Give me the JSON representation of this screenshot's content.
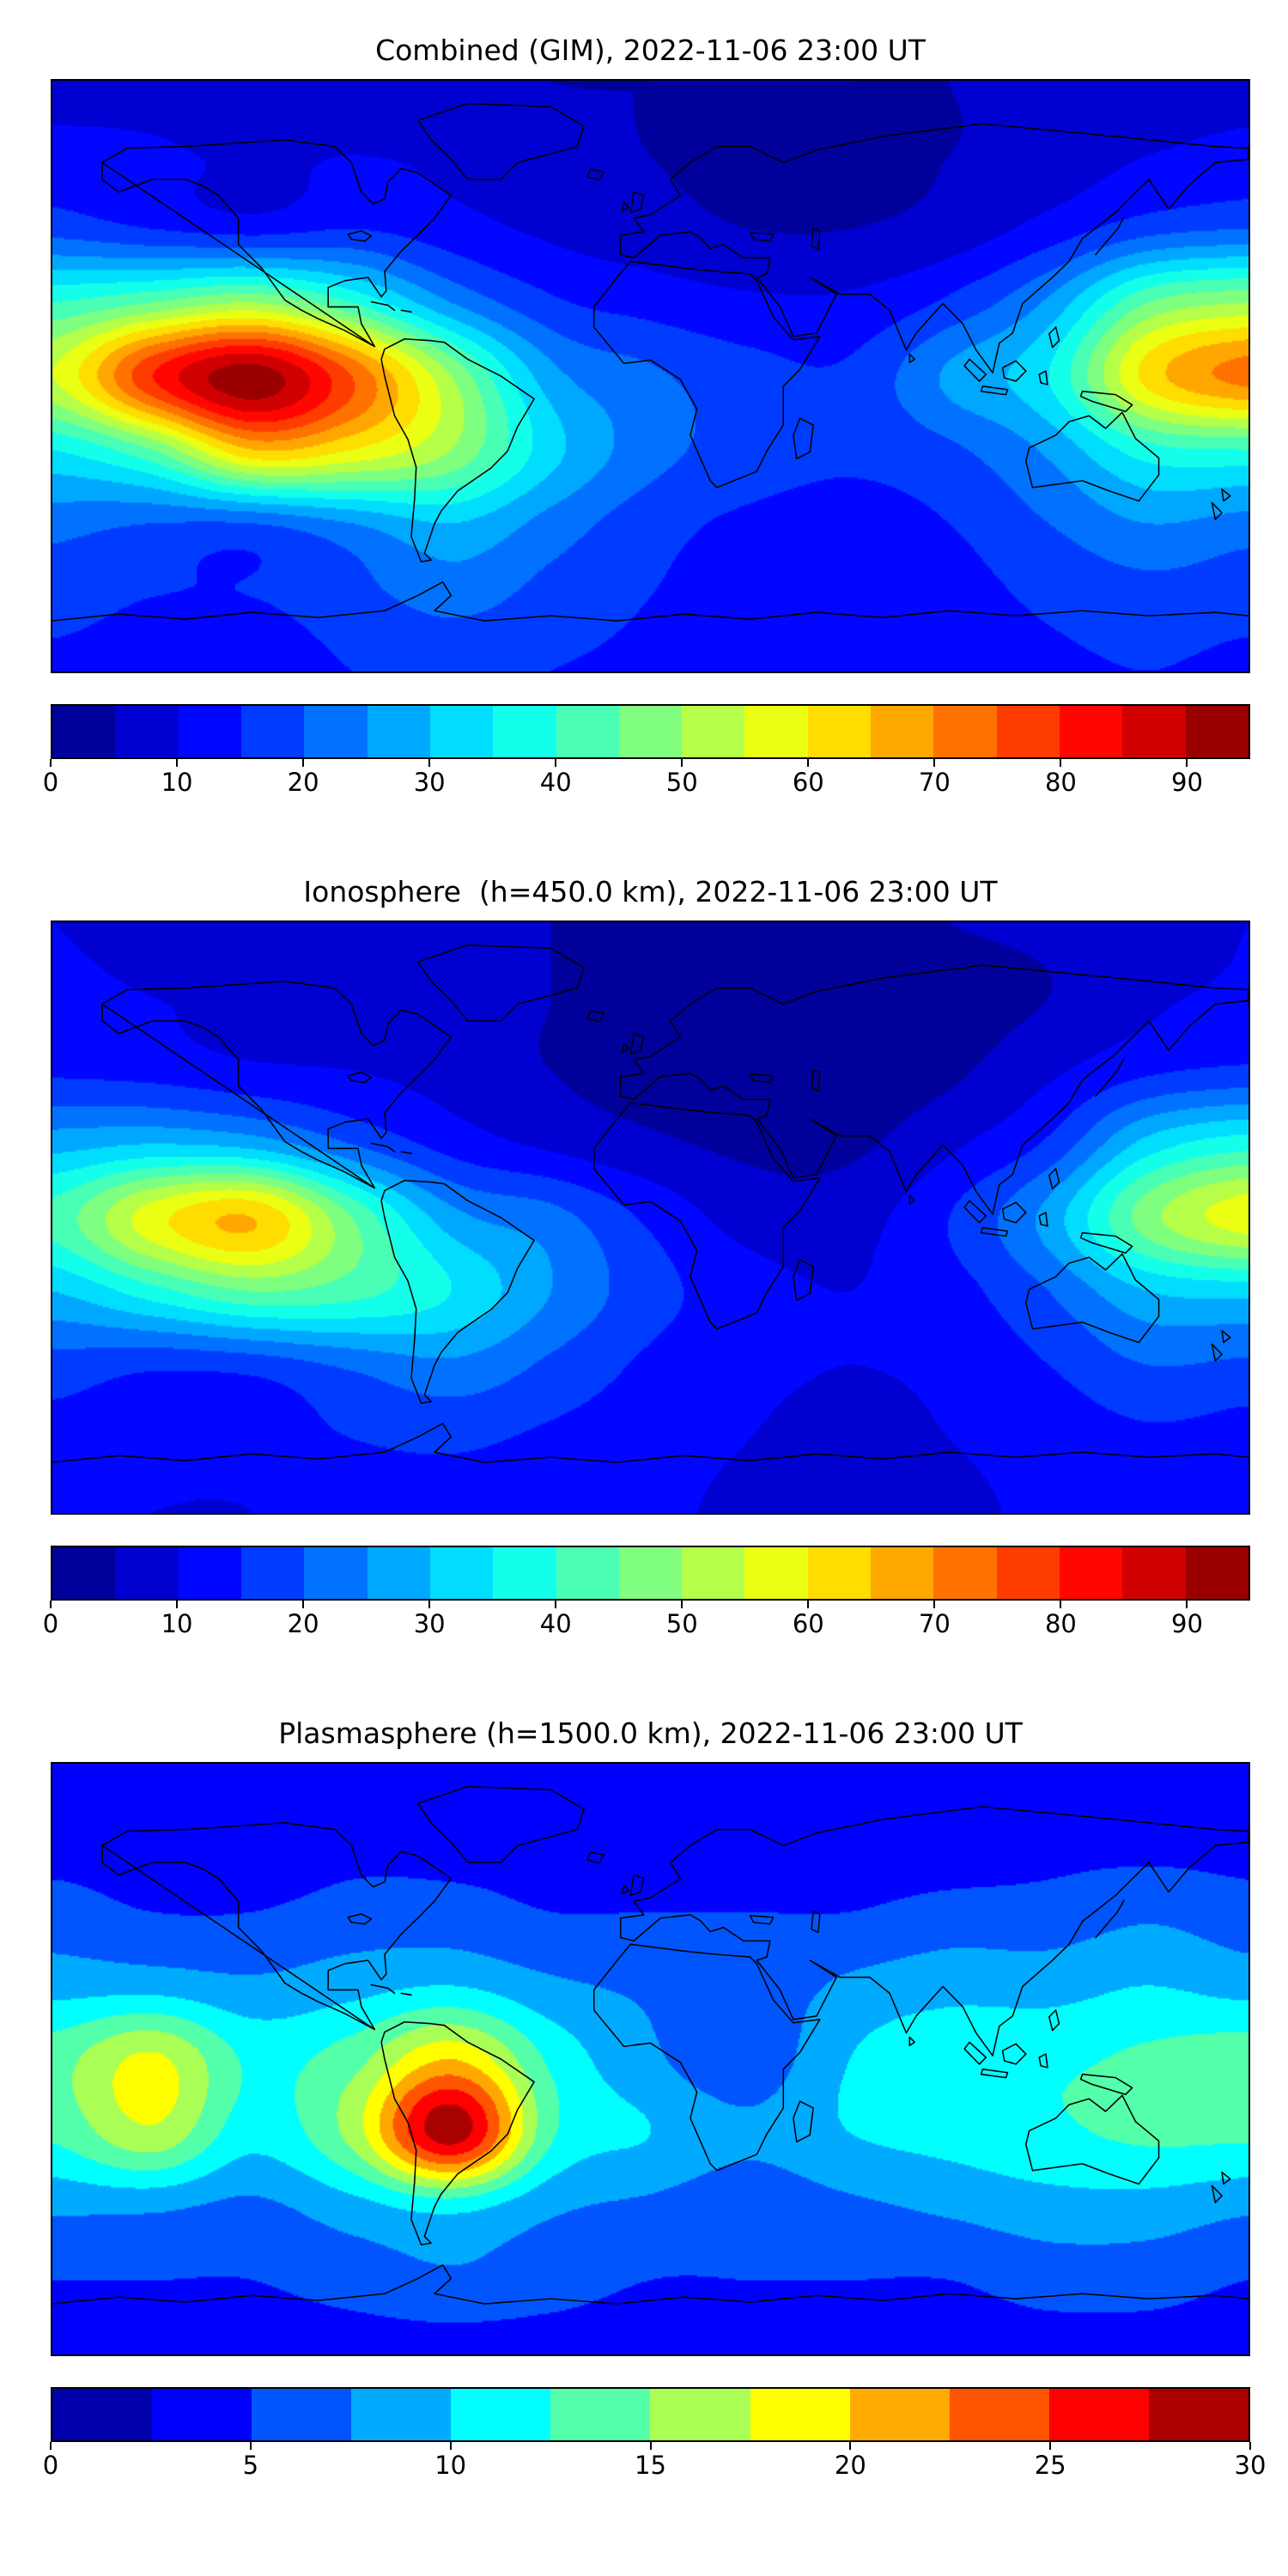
{
  "panels": [
    {
      "title": "Combined (GIM), 2022-11-06 23:00 UT",
      "colorbar": {
        "vmin": 0,
        "vmax": 95,
        "ticks": [
          0,
          10,
          20,
          30,
          40,
          50,
          60,
          70,
          80,
          90
        ],
        "segment_colors": [
          "#00009a",
          "#0000d0",
          "#0007ff",
          "#003cff",
          "#0072ff",
          "#00a8ff",
          "#00ddff",
          "#14ffeb",
          "#4affb5",
          "#80ff80",
          "#b5ff4a",
          "#ebff14",
          "#ffdd00",
          "#ffa800",
          "#ff7200",
          "#ff3c00",
          "#ff0700",
          "#d00000",
          "#9a0000"
        ]
      }
    },
    {
      "title": "Ionosphere  (h=450.0 km), 2022-11-06 23:00 UT",
      "colorbar": {
        "vmin": 0,
        "vmax": 95,
        "ticks": [
          0,
          10,
          20,
          30,
          40,
          50,
          60,
          70,
          80,
          90
        ],
        "segment_colors": [
          "#00009a",
          "#0000d0",
          "#0007ff",
          "#003cff",
          "#0072ff",
          "#00a8ff",
          "#00ddff",
          "#14ffeb",
          "#4affb5",
          "#80ff80",
          "#b5ff4a",
          "#ebff14",
          "#ffdd00",
          "#ffa800",
          "#ff7200",
          "#ff3c00",
          "#ff0700",
          "#d00000",
          "#9a0000"
        ]
      }
    },
    {
      "title": "Plasmasphere (h=1500.0 km), 2022-11-06 23:00 UT",
      "colorbar": {
        "vmin": 0,
        "vmax": 30,
        "ticks": [
          0,
          5,
          10,
          15,
          20,
          25,
          30
        ],
        "segment_colors": [
          "#0000aa",
          "#0000ff",
          "#0055ff",
          "#00aaff",
          "#00ffff",
          "#55ffaa",
          "#aaff55",
          "#ffff00",
          "#ffaa00",
          "#ff5500",
          "#ff0000",
          "#aa0000"
        ]
      }
    }
  ],
  "chart_data": [
    {
      "type": "heatmap",
      "title": "Combined (GIM), 2022-11-06 23:00 UT",
      "projection": "equirectangular world map, lon -180..180, lat 90..-90",
      "colormap": "jet",
      "vmin": 0,
      "vmax": 95,
      "contour_interval": 5,
      "colorbar_ticks": [
        0,
        10,
        20,
        30,
        40,
        50,
        60,
        70,
        80,
        90
      ],
      "lons": [
        -180,
        -150,
        -120,
        -90,
        -60,
        -30,
        0,
        30,
        60,
        90,
        120,
        150,
        180
      ],
      "lats": [
        90,
        67.5,
        45,
        22.5,
        0,
        -22.5,
        -45,
        -67.5,
        -90
      ],
      "values": [
        [
          8,
          8,
          7,
          7,
          6,
          5,
          5,
          5,
          5,
          5,
          6,
          7,
          8
        ],
        [
          12,
          11,
          9,
          10,
          9,
          7,
          5,
          4,
          4,
          5,
          7,
          10,
          12
        ],
        [
          18,
          15,
          13,
          15,
          12,
          9,
          7,
          5,
          5,
          7,
          12,
          18,
          20
        ],
        [
          40,
          45,
          50,
          40,
          25,
          16,
          13,
          11,
          11,
          16,
          26,
          45,
          50
        ],
        [
          55,
          80,
          93,
          75,
          50,
          27,
          21,
          17,
          16,
          26,
          35,
          62,
          72
        ],
        [
          35,
          45,
          65,
          60,
          50,
          32,
          22,
          18,
          16,
          19,
          26,
          38,
          40
        ],
        [
          22,
          20,
          20,
          25,
          30,
          23,
          17,
          14,
          13,
          15,
          20,
          25,
          23
        ],
        [
          17,
          15,
          15,
          18,
          22,
          18,
          15,
          13,
          12,
          13,
          16,
          18,
          17
        ],
        [
          14,
          13,
          13,
          15,
          16,
          15,
          14,
          12,
          12,
          12,
          14,
          15,
          14
        ]
      ]
    },
    {
      "type": "heatmap",
      "title": "Ionosphere  (h=450.0 km), 2022-11-06 23:00 UT",
      "projection": "equirectangular world map, lon -180..180, lat 90..-90",
      "colormap": "jet",
      "vmin": 0,
      "vmax": 95,
      "contour_interval": 5,
      "colorbar_ticks": [
        0,
        10,
        20,
        30,
        40,
        50,
        60,
        70,
        80,
        90
      ],
      "lons": [
        -180,
        -150,
        -120,
        -90,
        -60,
        -30,
        0,
        30,
        60,
        90,
        120,
        150,
        180
      ],
      "lats": [
        90,
        67.5,
        45,
        22.5,
        0,
        -22.5,
        -45,
        -67.5,
        -90
      ],
      "values": [
        [
          10,
          9,
          8,
          7,
          6,
          5,
          4,
          4,
          4,
          5,
          6,
          8,
          10
        ],
        [
          11,
          10,
          9,
          8,
          7,
          5,
          3,
          2,
          2,
          3,
          5,
          9,
          11
        ],
        [
          14,
          13,
          11,
          10,
          8,
          5,
          3,
          2,
          2,
          4,
          9,
          14,
          16
        ],
        [
          28,
          30,
          28,
          20,
          13,
          9,
          6,
          4,
          4,
          9,
          16,
          32,
          38
        ],
        [
          42,
          58,
          65,
          45,
          27,
          22,
          14,
          8,
          8,
          15,
          27,
          48,
          58
        ],
        [
          30,
          38,
          45,
          42,
          35,
          25,
          17,
          12,
          10,
          13,
          20,
          30,
          32
        ],
        [
          18,
          16,
          17,
          21,
          24,
          19,
          14,
          11,
          10,
          11,
          15,
          20,
          19
        ],
        [
          13,
          12,
          12,
          15,
          16,
          14,
          12,
          10,
          9,
          10,
          12,
          14,
          13
        ],
        [
          11,
          10,
          10,
          12,
          13,
          12,
          11,
          9,
          9,
          9,
          11,
          12,
          11
        ]
      ]
    },
    {
      "type": "heatmap",
      "title": "Plasmasphere (h=1500.0 km), 2022-11-06 23:00 UT",
      "projection": "equirectangular world map, lon -180..180, lat 90..-90",
      "colormap": "jet",
      "vmin": 0,
      "vmax": 30,
      "contour_interval": 2.5,
      "colorbar_ticks": [
        0,
        5,
        10,
        15,
        20,
        25,
        30
      ],
      "lons": [
        -180,
        -150,
        -120,
        -90,
        -60,
        -30,
        0,
        30,
        60,
        90,
        120,
        150,
        180
      ],
      "lats": [
        90,
        67.5,
        45,
        22.5,
        0,
        -22.5,
        -45,
        -67.5,
        -90
      ],
      "values": [
        [
          3,
          3,
          3,
          3,
          3,
          3,
          3,
          3,
          3,
          3,
          3,
          3,
          3
        ],
        [
          4,
          4,
          3,
          4,
          4,
          4,
          3,
          3,
          3,
          3,
          4,
          4,
          4
        ],
        [
          6,
          5,
          5,
          6,
          6,
          5,
          5,
          5,
          5,
          6,
          6,
          7,
          6
        ],
        [
          9,
          9,
          8,
          9,
          10,
          8,
          7,
          6,
          8,
          9,
          9,
          10,
          9
        ],
        [
          14,
          18,
          12,
          14,
          20,
          12,
          8,
          6,
          10,
          12,
          12,
          13,
          14
        ],
        [
          13,
          17,
          11,
          16,
          29,
          13,
          10,
          8,
          10,
          11,
          12,
          13,
          13
        ],
        [
          8,
          8,
          7,
          9,
          11,
          8,
          7,
          6,
          7,
          8,
          9,
          9,
          8
        ],
        [
          5,
          5,
          5,
          6,
          7,
          6,
          5,
          5,
          5,
          5,
          6,
          6,
          5
        ],
        [
          4,
          4,
          4,
          4,
          4,
          4,
          4,
          4,
          4,
          4,
          4,
          4,
          4
        ]
      ]
    }
  ]
}
